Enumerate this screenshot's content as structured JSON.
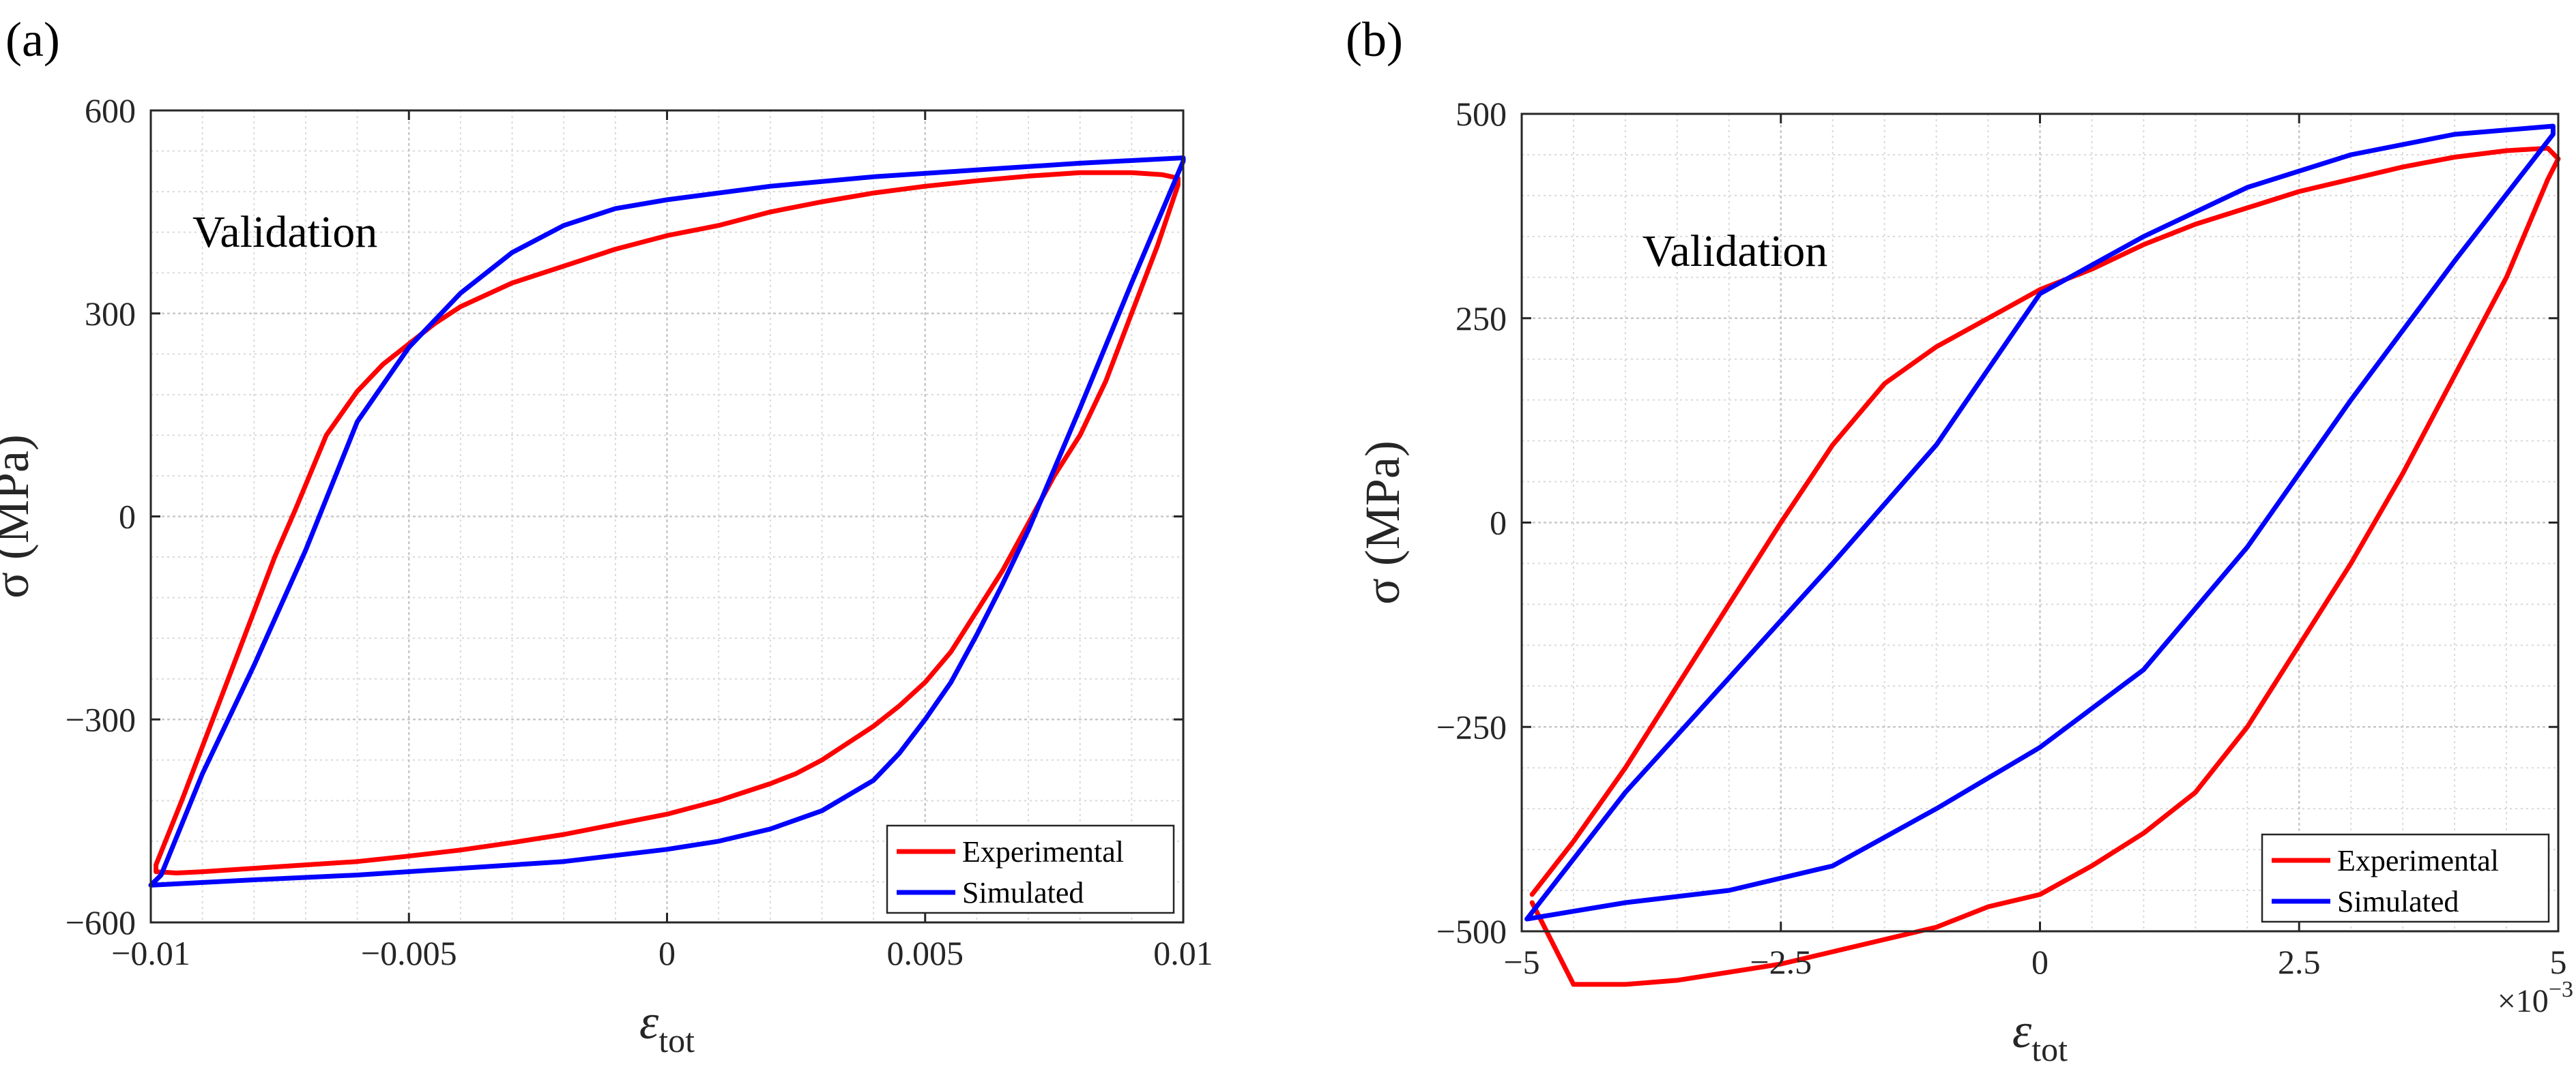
{
  "chart_data": [
    {
      "type": "line",
      "panel_label": "(a)",
      "annotation": "Validation",
      "xlabel": "ε",
      "xlabel_sub": "tot",
      "ylabel": "σ (MPa)",
      "xlim": [
        -0.01,
        0.01
      ],
      "ylim": [
        -600,
        600
      ],
      "xticks": [
        -0.01,
        -0.005,
        0,
        0.005,
        0.01
      ],
      "xtick_labels": [
        "−0.01",
        "−0.005",
        "0",
        "0.005",
        "0.01"
      ],
      "yticks": [
        -600,
        -300,
        0,
        300,
        600
      ],
      "ytick_labels": [
        "−600",
        "−300",
        "0",
        "300",
        "600"
      ],
      "x_scale_label": "",
      "grid": true,
      "legend_position": "bottom-right",
      "series": [
        {
          "name": "Experimental",
          "color": "#ff0000",
          "x": [
            -0.0099,
            -0.0094,
            -0.0088,
            -0.0082,
            -0.0076,
            -0.0072,
            -0.0066,
            -0.006,
            -0.0055,
            -0.005,
            -0.0045,
            -0.004,
            -0.003,
            -0.002,
            -0.001,
            0.0,
            0.001,
            0.002,
            0.003,
            0.004,
            0.005,
            0.006,
            0.007,
            0.008,
            0.009,
            0.0096,
            0.0099,
            0.0099,
            0.0095,
            0.009,
            0.0085,
            0.008,
            0.0075,
            0.007,
            0.0065,
            0.006,
            0.0055,
            0.005,
            0.0045,
            0.004,
            0.0035,
            0.003,
            0.0025,
            0.002,
            0.001,
            0.0,
            -0.001,
            -0.002,
            -0.003,
            -0.004,
            -0.005,
            -0.006,
            -0.007,
            -0.008,
            -0.009,
            -0.0095,
            -0.0099,
            -0.0099
          ],
          "y": [
            -515,
            -420,
            -300,
            -180,
            -60,
            10,
            120,
            185,
            225,
            255,
            285,
            310,
            345,
            370,
            395,
            415,
            430,
            450,
            465,
            478,
            488,
            496,
            503,
            508,
            508,
            505,
            500,
            490,
            400,
            300,
            200,
            120,
            60,
            -10,
            -80,
            -140,
            -200,
            -245,
            -280,
            -310,
            -335,
            -360,
            -380,
            -395,
            -420,
            -440,
            -455,
            -470,
            -482,
            -493,
            -502,
            -510,
            -515,
            -520,
            -525,
            -527,
            -525,
            -515
          ]
        },
        {
          "name": "Simulated",
          "color": "#0000ff",
          "x": [
            -0.0098,
            -0.009,
            -0.008,
            -0.007,
            -0.006,
            -0.005,
            -0.004,
            -0.003,
            -0.002,
            -0.001,
            0.0,
            0.002,
            0.004,
            0.006,
            0.008,
            0.01,
            0.01,
            0.009,
            0.008,
            0.007,
            0.0065,
            0.006,
            0.0055,
            0.005,
            0.0045,
            0.004,
            0.003,
            0.002,
            0.001,
            0.0,
            -0.002,
            -0.004,
            -0.006,
            -0.008,
            -0.01,
            -0.0098
          ],
          "y": [
            -530,
            -380,
            -220,
            -50,
            140,
            250,
            330,
            390,
            430,
            455,
            468,
            488,
            502,
            512,
            522,
            530,
            525,
            345,
            160,
            -20,
            -100,
            -175,
            -245,
            -300,
            -350,
            -390,
            -435,
            -462,
            -480,
            -492,
            -510,
            -520,
            -530,
            -537,
            -545,
            -530
          ]
        }
      ]
    },
    {
      "type": "line",
      "panel_label": "(b)",
      "annotation": "Validation",
      "xlabel": "ε",
      "xlabel_sub": "tot",
      "ylabel": "σ (MPa)",
      "xlim": [
        -5,
        5
      ],
      "ylim": [
        -500,
        500
      ],
      "xticks": [
        -5,
        -2.5,
        0,
        2.5,
        5
      ],
      "xtick_labels": [
        "−5",
        "−2.5",
        "0",
        "2.5",
        "5"
      ],
      "yticks": [
        -500,
        -250,
        0,
        250,
        500
      ],
      "ytick_labels": [
        "−500",
        "−250",
        "0",
        "250",
        "500"
      ],
      "x_scale_label": "×10",
      "x_scale_exp": "−3",
      "grid": true,
      "legend_position": "bottom-right",
      "series": [
        {
          "name": "Experimental",
          "color": "#ff0000",
          "x": [
            -4.9,
            -4.5,
            -4.0,
            -3.5,
            -3.0,
            -2.5,
            -2.0,
            -1.5,
            -1.0,
            -0.5,
            0.0,
            0.5,
            1.0,
            1.5,
            2.0,
            2.5,
            3.0,
            3.5,
            4.0,
            4.5,
            4.9,
            5.0,
            4.9,
            4.5,
            4.0,
            3.5,
            3.0,
            2.5,
            2.0,
            1.5,
            1.0,
            0.5,
            0.0,
            -0.5,
            -1.0,
            -1.5,
            -2.0,
            -2.5,
            -3.0,
            -3.5,
            -4.0,
            -4.5,
            -4.9
          ],
          "y": [
            -455,
            -390,
            -300,
            -200,
            -100,
            0,
            95,
            170,
            215,
            250,
            285,
            310,
            340,
            365,
            385,
            405,
            420,
            435,
            447,
            455,
            458,
            445,
            420,
            300,
            180,
            60,
            -50,
            -150,
            -250,
            -330,
            -380,
            -420,
            -455,
            -470,
            -495,
            -510,
            -525,
            -540,
            -550,
            -560,
            -565,
            -565,
            -465
          ]
        },
        {
          "name": "Simulated",
          "color": "#0000ff",
          "x": [
            -4.95,
            -4.0,
            -3.0,
            -2.0,
            -1.0,
            0.0,
            1.0,
            2.0,
            3.0,
            4.0,
            4.95,
            4.95,
            4.0,
            3.0,
            2.0,
            1.0,
            0.0,
            -1.0,
            -2.0,
            -3.0,
            -4.0,
            -4.95
          ],
          "y": [
            -485,
            -330,
            -190,
            -50,
            95,
            280,
            350,
            410,
            450,
            475,
            485,
            475,
            320,
            150,
            -30,
            -180,
            -275,
            -350,
            -420,
            -450,
            -465,
            -485
          ]
        }
      ]
    }
  ]
}
